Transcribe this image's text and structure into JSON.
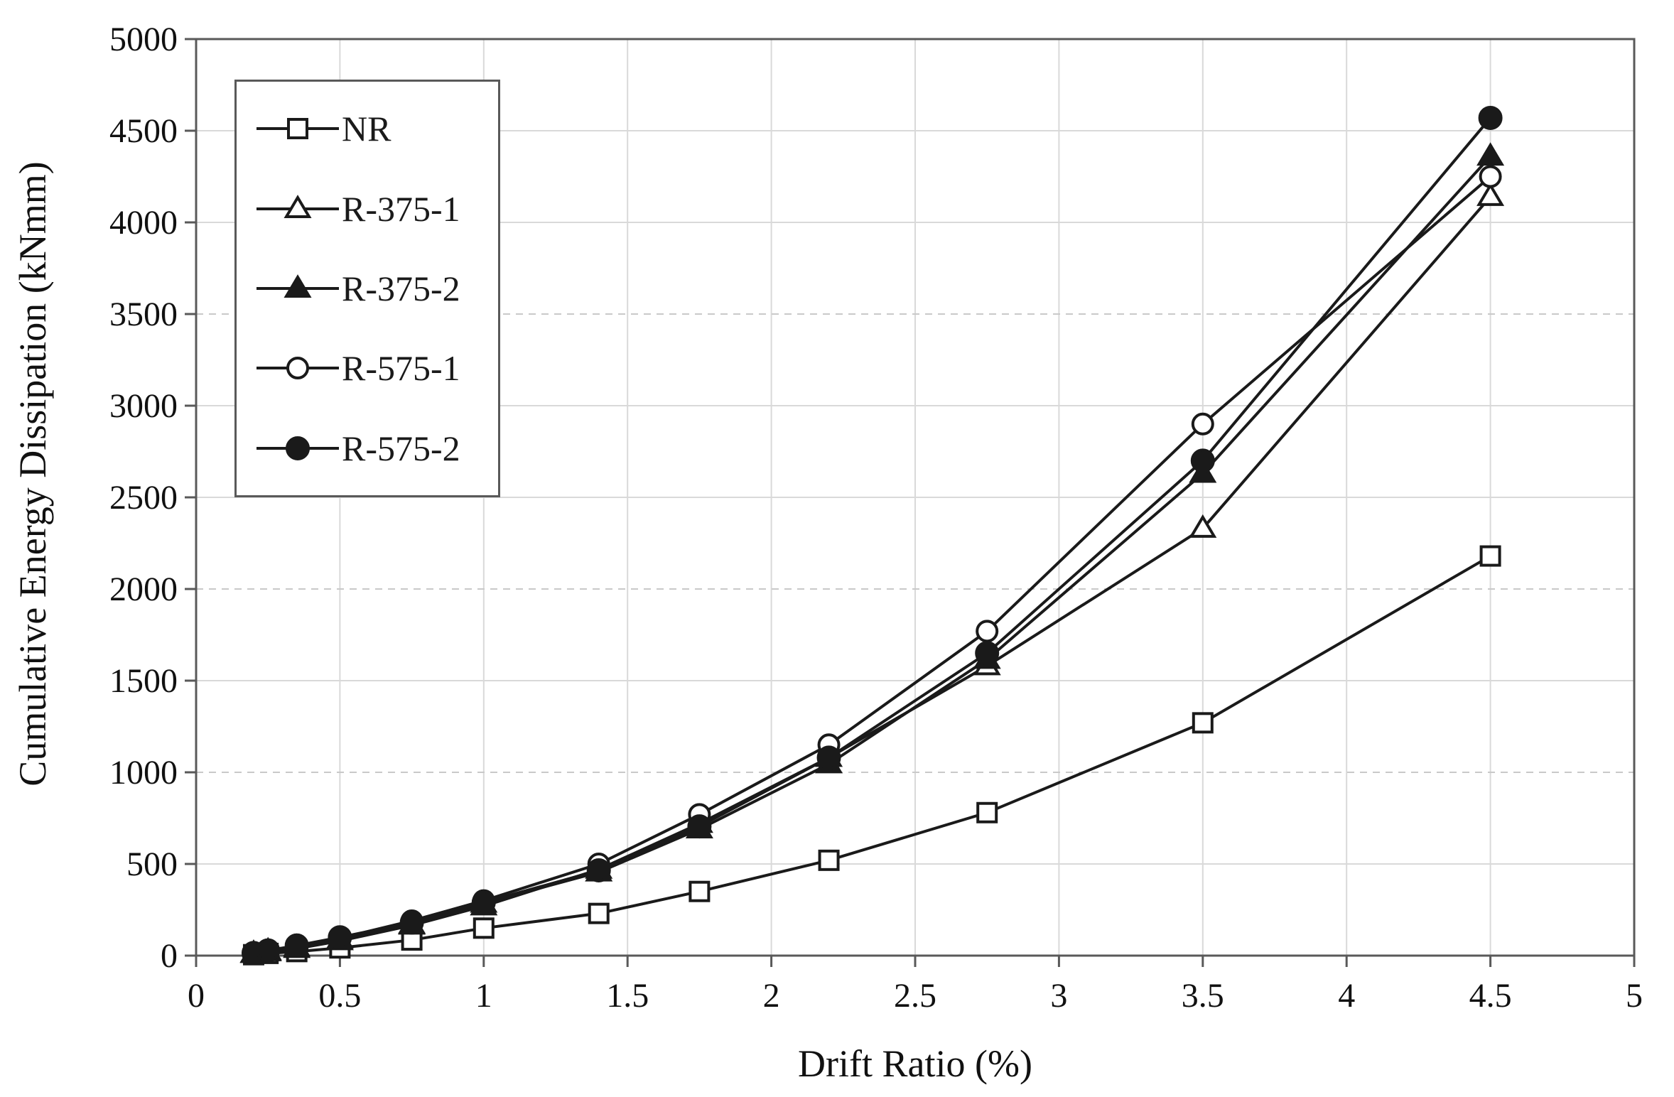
{
  "chart_data": {
    "type": "line",
    "title": "",
    "xlabel": "Drift Ratio (%)",
    "ylabel": "Cumulative Energy Dissipation (kNmm)",
    "xlim": [
      0,
      5
    ],
    "ylim": [
      0,
      5000
    ],
    "x_ticks": [
      0,
      0.5,
      1,
      1.5,
      2,
      2.5,
      3,
      3.5,
      4,
      4.5,
      5
    ],
    "x_tick_labels": [
      "0",
      "0.5",
      "1",
      "1.5",
      "2",
      "2.5",
      "3",
      "3.5",
      "4",
      "4.5",
      "5"
    ],
    "y_ticks": [
      0,
      500,
      1000,
      1500,
      2000,
      2500,
      3000,
      3500,
      4000,
      4500,
      5000
    ],
    "y_tick_labels": [
      "0",
      "500",
      "1000",
      "1500",
      "2000",
      "2500",
      "3000",
      "3500",
      "4000",
      "4500",
      "5000"
    ],
    "grid": true,
    "legend_position": "top-left",
    "x": [
      0.2,
      0.25,
      0.35,
      0.5,
      0.75,
      1.0,
      1.4,
      1.75,
      2.2,
      2.75,
      3.5,
      4.5
    ],
    "series": [
      {
        "name": "NR",
        "marker": "square-open",
        "values": [
          5,
          12,
          22,
          42,
          85,
          150,
          230,
          350,
          520,
          780,
          1270,
          2180
        ]
      },
      {
        "name": "R-375-1",
        "marker": "triangle-open",
        "values": [
          10,
          20,
          38,
          80,
          165,
          270,
          470,
          720,
          1080,
          1580,
          2330,
          4140
        ]
      },
      {
        "name": "R-375-2",
        "marker": "triangle-filled",
        "values": [
          12,
          25,
          45,
          88,
          170,
          285,
          455,
          690,
          1045,
          1615,
          2630,
          4360
        ]
      },
      {
        "name": "R-575-1",
        "marker": "circle-open",
        "values": [
          15,
          30,
          52,
          95,
          190,
          300,
          500,
          770,
          1150,
          1770,
          2900,
          4250
        ]
      },
      {
        "name": "R-575-2",
        "marker": "circle-filled",
        "values": [
          14,
          28,
          55,
          100,
          180,
          290,
          465,
          705,
          1080,
          1650,
          2700,
          4570
        ]
      }
    ],
    "colors": {
      "line": "#1a1a1a",
      "grid": "#d9d9d9",
      "grid_dashed": "#c9c9c9",
      "dashed_gridlines_at": [
        1000,
        2000,
        3500
      ],
      "border": "#595959",
      "text": "#111111",
      "background": "#ffffff"
    }
  }
}
